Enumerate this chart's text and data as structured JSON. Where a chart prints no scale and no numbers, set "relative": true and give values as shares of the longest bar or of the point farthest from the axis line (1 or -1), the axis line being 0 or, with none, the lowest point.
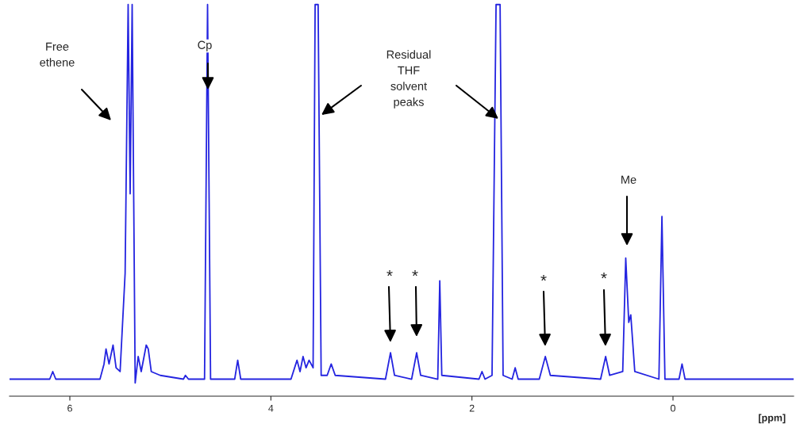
{
  "chart_data": {
    "type": "line",
    "relative": true,
    "xlabel": "[ppm]",
    "xlim": [
      6.6,
      -1.2
    ],
    "xticks": [
      6,
      4,
      2,
      0
    ],
    "grid": false,
    "legend": false,
    "line_style": "solid",
    "marker": "none",
    "series": [
      {
        "color": "#2424e0",
        "x": [
          6.6,
          6.2,
          6.17,
          6.14,
          5.7,
          5.66,
          5.64,
          5.61,
          5.57,
          5.54,
          5.5,
          5.45,
          5.42,
          5.4,
          5.38,
          5.35,
          5.32,
          5.29,
          5.24,
          5.22,
          5.19,
          5.1,
          4.87,
          4.85,
          4.82,
          4.66,
          4.63,
          4.6,
          4.36,
          4.33,
          4.3,
          3.8,
          3.74,
          3.71,
          3.68,
          3.65,
          3.62,
          3.58,
          3.56,
          3.53,
          3.5,
          3.44,
          3.4,
          3.36,
          2.86,
          2.81,
          2.77,
          2.6,
          2.55,
          2.51,
          2.34,
          2.32,
          2.3,
          1.93,
          1.9,
          1.87,
          1.8,
          1.76,
          1.72,
          1.69,
          1.6,
          1.57,
          1.54,
          1.33,
          1.27,
          1.22,
          0.72,
          0.67,
          0.63,
          0.5,
          0.47,
          0.44,
          0.42,
          0.38,
          0.14,
          0.11,
          0.08,
          -0.06,
          -0.09,
          -0.12,
          -1.2
        ],
        "values": [
          0.01,
          0.01,
          0.03,
          0.01,
          0.01,
          0.05,
          0.09,
          0.05,
          0.1,
          0.04,
          0.03,
          0.29,
          1,
          0.5,
          1,
          0.0,
          0.07,
          0.03,
          0.1,
          0.09,
          0.03,
          0.02,
          0.01,
          0.02,
          0.01,
          0.01,
          1,
          0.01,
          0.01,
          0.06,
          0.01,
          0.01,
          0.06,
          0.03,
          0.07,
          0.04,
          0.06,
          0.04,
          1,
          1,
          0.02,
          0.02,
          0.05,
          0.02,
          0.01,
          0.08,
          0.02,
          0.01,
          0.08,
          0.02,
          0.01,
          0.27,
          0.02,
          0.01,
          0.03,
          0.01,
          0.02,
          1,
          1,
          0.02,
          0.01,
          0.04,
          0.01,
          0.01,
          0.07,
          0.02,
          0.01,
          0.07,
          0.02,
          0.03,
          0.33,
          0.16,
          0.18,
          0.03,
          0.01,
          0.44,
          0.01,
          0.01,
          0.05,
          0.01,
          0.01
        ]
      }
    ],
    "annotations": [
      "Free\nethene",
      "Cp",
      "Residual\nTHF\nsolvent\npeaks",
      "Me",
      "*",
      "*",
      "*",
      "*"
    ]
  }
}
